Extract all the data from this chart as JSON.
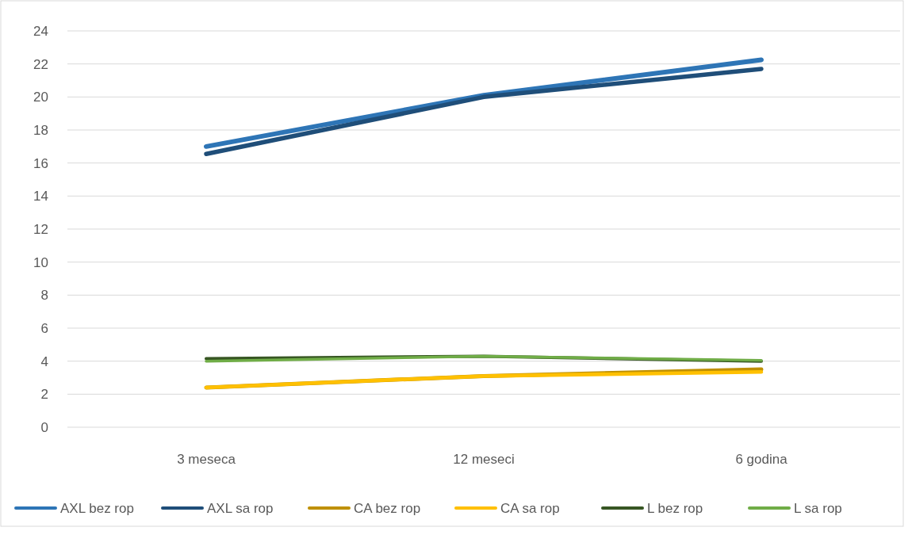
{
  "chart_data": {
    "type": "line",
    "categories": [
      "3 meseca",
      "12 meseci",
      "6 godina"
    ],
    "ylim": [
      0,
      24
    ],
    "yticks": [
      0,
      2,
      4,
      6,
      8,
      10,
      12,
      14,
      16,
      18,
      20,
      22,
      24
    ],
    "grid": "y",
    "legend": "bottom",
    "marker": "none",
    "line_style": "solid",
    "series": [
      {
        "name": "AXL bez rop",
        "color": "#2e75b6",
        "values": [
          17.0,
          20.1,
          22.25
        ]
      },
      {
        "name": "AXL sa rop",
        "color": "#1f4e79",
        "values": [
          16.55,
          20.0,
          21.7
        ]
      },
      {
        "name": "CA bez rop",
        "color": "#bf9000",
        "values": [
          2.4,
          3.1,
          3.5
        ]
      },
      {
        "name": "CA sa rop",
        "color": "#ffc000",
        "values": [
          2.4,
          3.1,
          3.35
        ]
      },
      {
        "name": "L bez rop",
        "color": "#375623",
        "values": [
          4.15,
          4.3,
          4.0
        ]
      },
      {
        "name": "L sa rop",
        "color": "#70ad47",
        "values": [
          4.0,
          4.3,
          4.05
        ]
      }
    ]
  }
}
